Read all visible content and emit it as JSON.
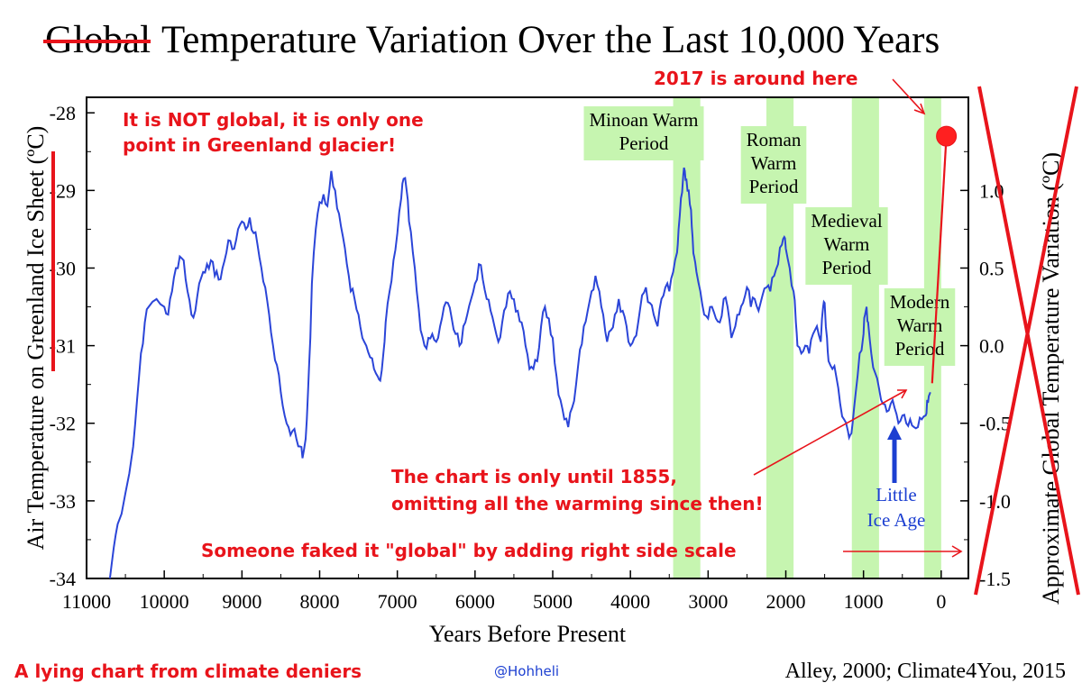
{
  "title": {
    "struck_word": "Global",
    "rest": "Temperature Variation Over the Last 10,000 Years"
  },
  "annotations": {
    "not_global_line1": "It is NOT global, it is only one",
    "not_global_line2": "point in Greenland glacier!",
    "year_2017": "2017 is around here",
    "until_1855_line1": "The chart is only until 1855,",
    "until_1855_line2": "omitting all the warming since then!",
    "faked_global": "Someone faked it \"global\" by adding right side scale",
    "little_ice_age_line1": "Little",
    "little_ice_age_line2": "Ice Age",
    "footer_left": "A lying chart from climate deniers",
    "handle": "@Hohheli",
    "credit": "Alley, 2000; Climate4You, 2015"
  },
  "colors": {
    "series": "#2b45d8",
    "annotation_red": "#e8141b",
    "period_band": "#c6f5b0",
    "little_ice_age": "#1c3fd1"
  },
  "chart_data": {
    "type": "line",
    "title": "Global Temperature Variation Over the Last 10,000 Years",
    "xlabel": "Years Before Present",
    "ylabel": "Air Temperature on Greenland Ice Sheet (ºC)",
    "y2label": "Approximate Global Temperature Variation (ºC)",
    "xlim": [
      11000,
      -350
    ],
    "ylim": [
      -34,
      -27.8
    ],
    "x_ticks": [
      11000,
      10000,
      9000,
      8000,
      7000,
      6000,
      5000,
      4000,
      3000,
      2000,
      1000,
      0
    ],
    "y_ticks": [
      -28,
      -29,
      -30,
      -31,
      -32,
      -33,
      -34
    ],
    "y2_ticks": [
      1.0,
      0.5,
      0.0,
      -0.5,
      -1.0,
      -1.5
    ],
    "y2_tick_labels": [
      "1.0",
      "0.5",
      "0.0",
      "-0.5",
      "-1.0",
      "-1.5"
    ],
    "y2_mapping": {
      "y": [
        -31,
        -32
      ],
      "y2": [
        0.0,
        -0.5
      ]
    },
    "grid": false,
    "periods": [
      {
        "label_lines": [
          "Minoan Warm",
          "Period"
        ],
        "start": 3450,
        "end": 3100
      },
      {
        "label_lines": [
          "Roman",
          "Warm",
          "Period"
        ],
        "start": 2250,
        "end": 1900
      },
      {
        "label_lines": [
          "Medieval",
          "Warm",
          "Period"
        ],
        "start": 1150,
        "end": 800
      },
      {
        "label_lines": [
          "Modern",
          "Warm",
          "Period"
        ],
        "start": 220,
        "end": 0
      }
    ],
    "marker_2017": {
      "x": -67,
      "y": -28.3
    },
    "series": [
      {
        "values": [
          [
            10700,
            -34.0
          ],
          [
            10650,
            -33.6
          ],
          [
            10600,
            -33.3
          ],
          [
            10500,
            -32.9
          ],
          [
            10400,
            -32.3
          ],
          [
            10350,
            -31.7
          ],
          [
            10300,
            -31.1
          ],
          [
            10250,
            -30.7
          ],
          [
            10200,
            -30.5
          ],
          [
            10100,
            -30.4
          ],
          [
            10000,
            -30.5
          ],
          [
            9950,
            -30.6
          ],
          [
            9900,
            -30.3
          ],
          [
            9850,
            -30.0
          ],
          [
            9800,
            -29.85
          ],
          [
            9750,
            -29.9
          ],
          [
            9700,
            -30.3
          ],
          [
            9650,
            -30.6
          ],
          [
            9600,
            -30.55
          ],
          [
            9550,
            -30.2
          ],
          [
            9500,
            -30.05
          ],
          [
            9450,
            -29.95
          ],
          [
            9400,
            -29.9
          ],
          [
            9350,
            -30.1
          ],
          [
            9300,
            -30.15
          ],
          [
            9250,
            -30.0
          ],
          [
            9200,
            -29.8
          ],
          [
            9150,
            -29.65
          ],
          [
            9100,
            -29.75
          ],
          [
            9050,
            -29.5
          ],
          [
            9000,
            -29.4
          ],
          [
            8950,
            -29.5
          ],
          [
            8900,
            -29.35
          ],
          [
            8850,
            -29.55
          ],
          [
            8800,
            -29.7
          ],
          [
            8750,
            -30.0
          ],
          [
            8700,
            -30.25
          ],
          [
            8650,
            -30.6
          ],
          [
            8600,
            -31.0
          ],
          [
            8550,
            -31.25
          ],
          [
            8500,
            -31.6
          ],
          [
            8450,
            -31.9
          ],
          [
            8400,
            -32.05
          ],
          [
            8350,
            -32.1
          ],
          [
            8300,
            -32.2
          ],
          [
            8250,
            -32.3
          ],
          [
            8220,
            -32.45
          ],
          [
            8180,
            -32.2
          ],
          [
            8150,
            -31.6
          ],
          [
            8120,
            -30.9
          ],
          [
            8100,
            -30.2
          ],
          [
            8050,
            -29.5
          ],
          [
            8000,
            -29.15
          ],
          [
            7950,
            -29.05
          ],
          [
            7900,
            -29.2
          ],
          [
            7850,
            -28.75
          ],
          [
            7800,
            -29.0
          ],
          [
            7750,
            -29.3
          ],
          [
            7700,
            -29.6
          ],
          [
            7650,
            -29.95
          ],
          [
            7600,
            -30.3
          ],
          [
            7550,
            -30.4
          ],
          [
            7500,
            -30.6
          ],
          [
            7450,
            -30.9
          ],
          [
            7400,
            -31.0
          ],
          [
            7350,
            -31.15
          ],
          [
            7300,
            -31.3
          ],
          [
            7250,
            -31.4
          ],
          [
            7220,
            -31.45
          ],
          [
            7180,
            -31.1
          ],
          [
            7150,
            -30.7
          ],
          [
            7100,
            -30.3
          ],
          [
            7050,
            -29.9
          ],
          [
            7000,
            -29.55
          ],
          [
            6950,
            -29.1
          ],
          [
            6920,
            -28.85
          ],
          [
            6880,
            -29.0
          ],
          [
            6850,
            -29.4
          ],
          [
            6800,
            -29.8
          ],
          [
            6750,
            -30.3
          ],
          [
            6700,
            -30.8
          ],
          [
            6650,
            -31.0
          ],
          [
            6600,
            -30.9
          ],
          [
            6550,
            -30.85
          ],
          [
            6500,
            -30.95
          ],
          [
            6450,
            -30.75
          ],
          [
            6400,
            -30.5
          ],
          [
            6350,
            -30.45
          ],
          [
            6300,
            -30.65
          ],
          [
            6250,
            -30.85
          ],
          [
            6200,
            -31.0
          ],
          [
            6150,
            -30.75
          ],
          [
            6100,
            -30.6
          ],
          [
            6050,
            -30.4
          ],
          [
            6000,
            -30.2
          ],
          [
            5950,
            -29.95
          ],
          [
            5900,
            -30.15
          ],
          [
            5850,
            -30.4
          ],
          [
            5800,
            -30.55
          ],
          [
            5750,
            -30.75
          ],
          [
            5700,
            -30.95
          ],
          [
            5650,
            -30.7
          ],
          [
            5600,
            -30.5
          ],
          [
            5550,
            -30.3
          ],
          [
            5500,
            -30.4
          ],
          [
            5450,
            -30.55
          ],
          [
            5400,
            -30.7
          ],
          [
            5350,
            -31.0
          ],
          [
            5300,
            -31.3
          ],
          [
            5250,
            -31.3
          ],
          [
            5200,
            -31.2
          ],
          [
            5150,
            -30.75
          ],
          [
            5100,
            -30.5
          ],
          [
            5050,
            -30.65
          ],
          [
            5000,
            -30.9
          ],
          [
            4950,
            -31.4
          ],
          [
            4900,
            -31.7
          ],
          [
            4850,
            -31.95
          ],
          [
            4800,
            -32.05
          ],
          [
            4750,
            -31.8
          ],
          [
            4700,
            -31.5
          ],
          [
            4650,
            -31.05
          ],
          [
            4600,
            -30.75
          ],
          [
            4550,
            -30.55
          ],
          [
            4500,
            -30.3
          ],
          [
            4450,
            -30.1
          ],
          [
            4400,
            -30.3
          ],
          [
            4350,
            -30.6
          ],
          [
            4300,
            -30.95
          ],
          [
            4250,
            -30.8
          ],
          [
            4200,
            -30.6
          ],
          [
            4150,
            -30.4
          ],
          [
            4100,
            -30.55
          ],
          [
            4050,
            -30.75
          ],
          [
            4000,
            -31.0
          ],
          [
            3950,
            -30.9
          ],
          [
            3900,
            -30.7
          ],
          [
            3850,
            -30.35
          ],
          [
            3800,
            -30.25
          ],
          [
            3750,
            -30.45
          ],
          [
            3700,
            -30.6
          ],
          [
            3650,
            -30.75
          ],
          [
            3600,
            -30.4
          ],
          [
            3550,
            -30.25
          ],
          [
            3500,
            -30.3
          ],
          [
            3450,
            -30.05
          ],
          [
            3400,
            -29.8
          ],
          [
            3380,
            -29.5
          ],
          [
            3350,
            -29.1
          ],
          [
            3320,
            -28.8
          ],
          [
            3300,
            -28.75
          ],
          [
            3280,
            -28.85
          ],
          [
            3250,
            -29.0
          ],
          [
            3220,
            -29.25
          ],
          [
            3200,
            -29.6
          ],
          [
            3180,
            -29.85
          ],
          [
            3150,
            -30.05
          ],
          [
            3100,
            -30.3
          ],
          [
            3050,
            -30.6
          ],
          [
            3000,
            -30.65
          ],
          [
            2950,
            -30.5
          ],
          [
            2900,
            -30.65
          ],
          [
            2850,
            -30.7
          ],
          [
            2800,
            -30.4
          ],
          [
            2750,
            -30.5
          ],
          [
            2700,
            -30.9
          ],
          [
            2650,
            -30.75
          ],
          [
            2600,
            -30.6
          ],
          [
            2550,
            -30.45
          ],
          [
            2500,
            -30.25
          ],
          [
            2450,
            -30.5
          ],
          [
            2400,
            -30.4
          ],
          [
            2350,
            -30.55
          ],
          [
            2300,
            -30.35
          ],
          [
            2250,
            -30.25
          ],
          [
            2200,
            -30.3
          ],
          [
            2150,
            -30.1
          ],
          [
            2100,
            -29.95
          ],
          [
            2050,
            -29.7
          ],
          [
            2020,
            -29.6
          ],
          [
            2000,
            -29.75
          ],
          [
            1950,
            -30.0
          ],
          [
            1900,
            -30.3
          ],
          [
            1870,
            -30.7
          ],
          [
            1850,
            -31.0
          ],
          [
            1800,
            -31.1
          ],
          [
            1750,
            -31.0
          ],
          [
            1700,
            -31.1
          ],
          [
            1650,
            -30.85
          ],
          [
            1600,
            -30.75
          ],
          [
            1550,
            -30.95
          ],
          [
            1520,
            -30.5
          ],
          [
            1500,
            -30.45
          ],
          [
            1470,
            -30.9
          ],
          [
            1450,
            -31.2
          ],
          [
            1400,
            -31.3
          ],
          [
            1350,
            -31.4
          ],
          [
            1300,
            -31.75
          ],
          [
            1250,
            -31.95
          ],
          [
            1200,
            -32.1
          ],
          [
            1170,
            -32.15
          ],
          [
            1140,
            -32.0
          ],
          [
            1100,
            -31.6
          ],
          [
            1050,
            -31.1
          ],
          [
            1000,
            -30.85
          ],
          [
            980,
            -30.6
          ],
          [
            960,
            -30.5
          ],
          [
            940,
            -30.7
          ],
          [
            900,
            -31.1
          ],
          [
            850,
            -31.35
          ],
          [
            800,
            -31.55
          ],
          [
            750,
            -31.75
          ],
          [
            700,
            -31.85
          ],
          [
            650,
            -31.75
          ],
          [
            600,
            -31.8
          ],
          [
            550,
            -32.0
          ],
          [
            500,
            -31.9
          ],
          [
            450,
            -32.0
          ],
          [
            400,
            -31.95
          ],
          [
            350,
            -32.05
          ],
          [
            300,
            -32.05
          ],
          [
            250,
            -31.95
          ],
          [
            200,
            -31.9
          ],
          [
            180,
            -31.7
          ],
          [
            160,
            -31.65
          ],
          [
            140,
            -31.6
          ]
        ]
      }
    ]
  }
}
